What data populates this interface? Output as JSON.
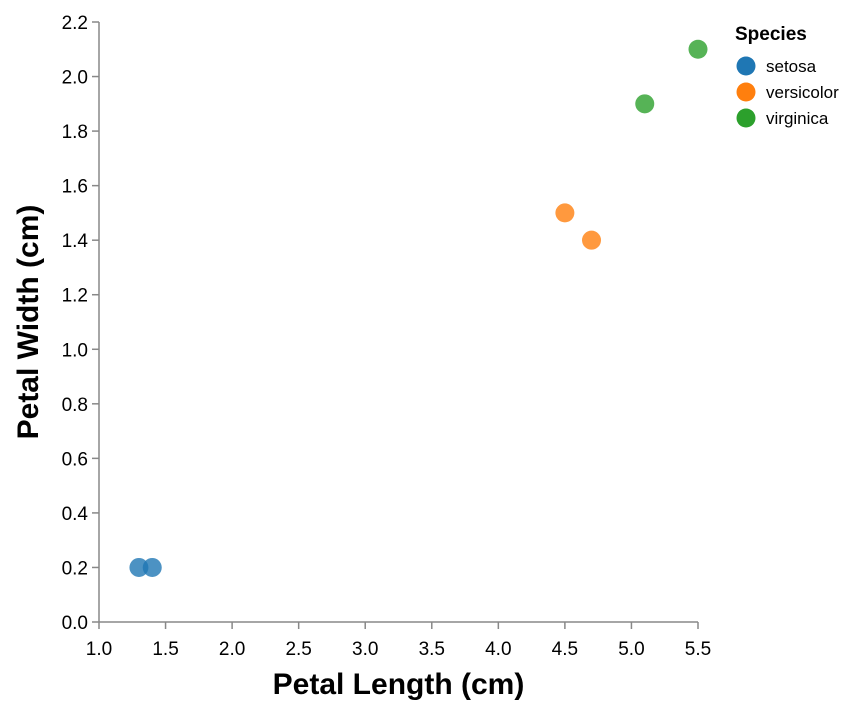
{
  "chart_data": {
    "type": "scatter",
    "xlabel": "Petal Length (cm)",
    "ylabel": "Petal Width (cm)",
    "xlim": [
      1.0,
      5.5
    ],
    "ylim": [
      0.0,
      2.2
    ],
    "xticks": [
      1.0,
      1.5,
      2.0,
      2.5,
      3.0,
      3.5,
      4.0,
      4.5,
      5.0,
      5.5
    ],
    "yticks": [
      0.0,
      0.2,
      0.4,
      0.6,
      0.8,
      1.0,
      1.2,
      1.4,
      1.6,
      1.8,
      2.0,
      2.2
    ],
    "xtick_labels": [
      "1.0",
      "1.5",
      "2.0",
      "2.5",
      "3.0",
      "3.5",
      "4.0",
      "4.5",
      "5.0",
      "5.5"
    ],
    "ytick_labels": [
      "0.0",
      "0.2",
      "0.4",
      "0.6",
      "0.8",
      "1.0",
      "1.2",
      "1.4",
      "1.6",
      "1.8",
      "2.0",
      "2.2"
    ],
    "grid": false,
    "legend": {
      "title": "Species",
      "position": "top-right"
    },
    "series": [
      {
        "name": "setosa",
        "color": "#1f77b4",
        "points": [
          {
            "x": 1.3,
            "y": 0.2
          },
          {
            "x": 1.4,
            "y": 0.2
          }
        ]
      },
      {
        "name": "versicolor",
        "color": "#ff7f0e",
        "points": [
          {
            "x": 4.5,
            "y": 1.5
          },
          {
            "x": 4.7,
            "y": 1.4
          }
        ]
      },
      {
        "name": "virginica",
        "color": "#2ca02c",
        "points": [
          {
            "x": 5.1,
            "y": 1.9
          },
          {
            "x": 5.5,
            "y": 2.1
          }
        ]
      }
    ]
  }
}
